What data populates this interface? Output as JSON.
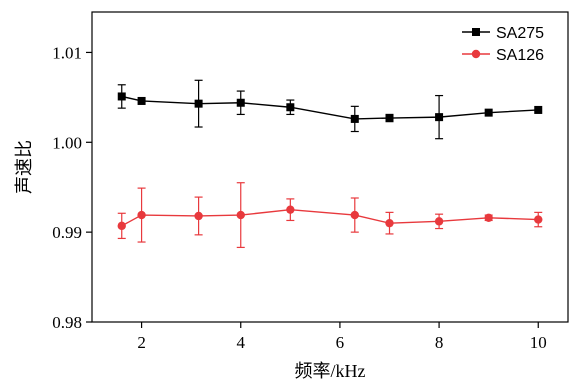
{
  "chart_data": {
    "type": "line",
    "title": "",
    "xlabel": "频率/kHz",
    "ylabel": "声速比",
    "xlim": [
      1.0,
      10.6
    ],
    "ylim": [
      0.98,
      1.0145
    ],
    "xticks": [
      2,
      4,
      6,
      8,
      10
    ],
    "xtick_labels": [
      "2",
      "4",
      "6",
      "8",
      "10"
    ],
    "yticks": [
      0.98,
      0.99,
      1.0,
      1.01
    ],
    "ytick_labels": [
      "0.98",
      "0.99",
      "1.00",
      "1.01"
    ],
    "grid": false,
    "legend_position": "top-right",
    "series": [
      {
        "name": "SA275",
        "color": "#000000",
        "marker": "square",
        "x": [
          1.6,
          2.0,
          3.15,
          4.0,
          5.0,
          6.3,
          7.0,
          8.0,
          9.0,
          10.0
        ],
        "y": [
          1.0051,
          1.0046,
          1.0043,
          1.0044,
          1.0039,
          1.0026,
          1.0027,
          1.0028,
          1.0033,
          1.0036
        ],
        "yerr": [
          0.0013,
          0.0,
          0.0026,
          0.0013,
          0.0008,
          0.0014,
          0.0004,
          0.0024,
          0.0,
          0.0
        ]
      },
      {
        "name": "SA126",
        "color": "#e8393d",
        "marker": "circle",
        "x": [
          1.6,
          2.0,
          3.15,
          4.0,
          5.0,
          6.3,
          7.0,
          8.0,
          9.0,
          10.0
        ],
        "y": [
          0.9907,
          0.9919,
          0.9918,
          0.9919,
          0.9925,
          0.9919,
          0.991,
          0.9912,
          0.9916,
          0.9914
        ],
        "yerr": [
          0.0014,
          0.003,
          0.0021,
          0.0036,
          0.0012,
          0.0019,
          0.0012,
          0.0008,
          0.0003,
          0.0008
        ]
      }
    ]
  }
}
